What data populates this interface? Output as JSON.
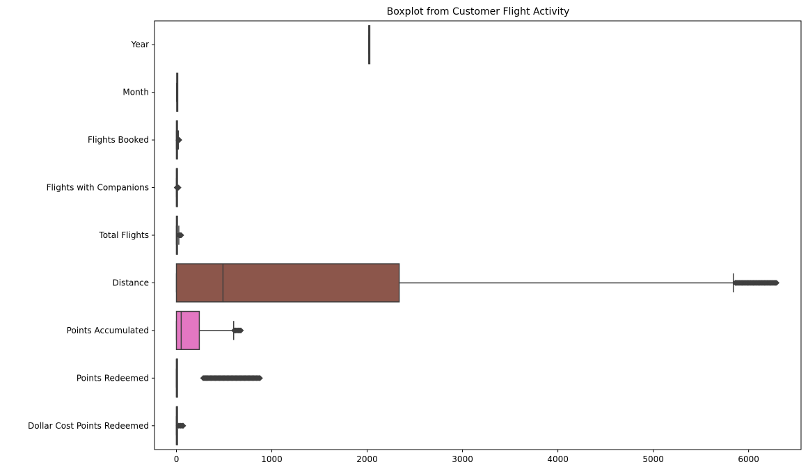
{
  "chart_data": {
    "type": "boxplot",
    "orientation": "horizontal",
    "title": "Boxplot from Customer Flight Activity",
    "xlabel": "",
    "ylabel": "",
    "xlim": [
      -230,
      6550
    ],
    "xticks": [
      0,
      1000,
      2000,
      3000,
      4000,
      5000,
      6000
    ],
    "xtick_labels": [
      "0",
      "1000",
      "2000",
      "3000",
      "4000",
      "5000",
      "6000"
    ],
    "grid": false,
    "legend": "none",
    "categories": [
      "Year",
      "Month",
      "Flights Booked",
      "Flights with Companions",
      "Total Flights",
      "Distance",
      "Points Accumulated",
      "Points Redeemed",
      "Dollar Cost Points Redeemed"
    ],
    "boxes": [
      {
        "category": "Year",
        "whisker_low": 2017,
        "q1": 2017,
        "median": 2017,
        "q3": 2018,
        "whisker_high": 2018,
        "outliers": [],
        "color": "#1f77b4"
      },
      {
        "category": "Month",
        "whisker_low": 1,
        "q1": 3,
        "median": 6,
        "q3": 9,
        "whisker_high": 12,
        "outliers": [],
        "color": "#ff7f0e"
      },
      {
        "category": "Flights Booked",
        "whisker_low": 0,
        "q1": 0,
        "median": 1,
        "q3": 8,
        "whisker_high": 20,
        "outliers": [
          21,
          22,
          24,
          26,
          28,
          30
        ],
        "color": "#2ca02c"
      },
      {
        "category": "Flights with Companions",
        "whisker_low": 0,
        "q1": 0,
        "median": 0,
        "q3": 1,
        "whisker_high": 2,
        "outliers": [
          3,
          5,
          7,
          9,
          11,
          13,
          15,
          17,
          19,
          21
        ],
        "color": "#d62728"
      },
      {
        "category": "Total Flights",
        "whisker_low": 0,
        "q1": 0,
        "median": 1,
        "q3": 10,
        "whisker_high": 25,
        "outliers": [
          26,
          30,
          34,
          38,
          42,
          46,
          50
        ],
        "color": "#9467bd"
      },
      {
        "category": "Distance",
        "whisker_low": 0,
        "q1": 0,
        "median": 488,
        "q3": 2336,
        "whisker_high": 5840,
        "outliers": [
          5860,
          5900,
          5950,
          6000,
          6050,
          6100,
          6150,
          6200,
          6250,
          6293
        ],
        "color": "#8c564b"
      },
      {
        "category": "Points Accumulated",
        "whisker_low": 0,
        "q1": 0,
        "median": 50,
        "q3": 240,
        "whisker_high": 600,
        "outliers": [
          605,
          620,
          640,
          660,
          676
        ],
        "color": "#e377c2"
      },
      {
        "category": "Points Redeemed",
        "whisker_low": 0,
        "q1": 0,
        "median": 0,
        "q3": 0,
        "whisker_high": 0,
        "outliers": [
          280,
          330,
          400,
          470,
          540,
          610,
          680,
          750,
          820,
          876
        ],
        "color": "#7f7f7f"
      },
      {
        "category": "Dollar Cost Points Redeemed",
        "whisker_low": 0,
        "q1": 0,
        "median": 0,
        "q3": 0,
        "whisker_high": 0,
        "outliers": [
          23,
          35,
          45,
          55,
          65,
          71
        ],
        "color": "#bcbd22"
      }
    ]
  }
}
